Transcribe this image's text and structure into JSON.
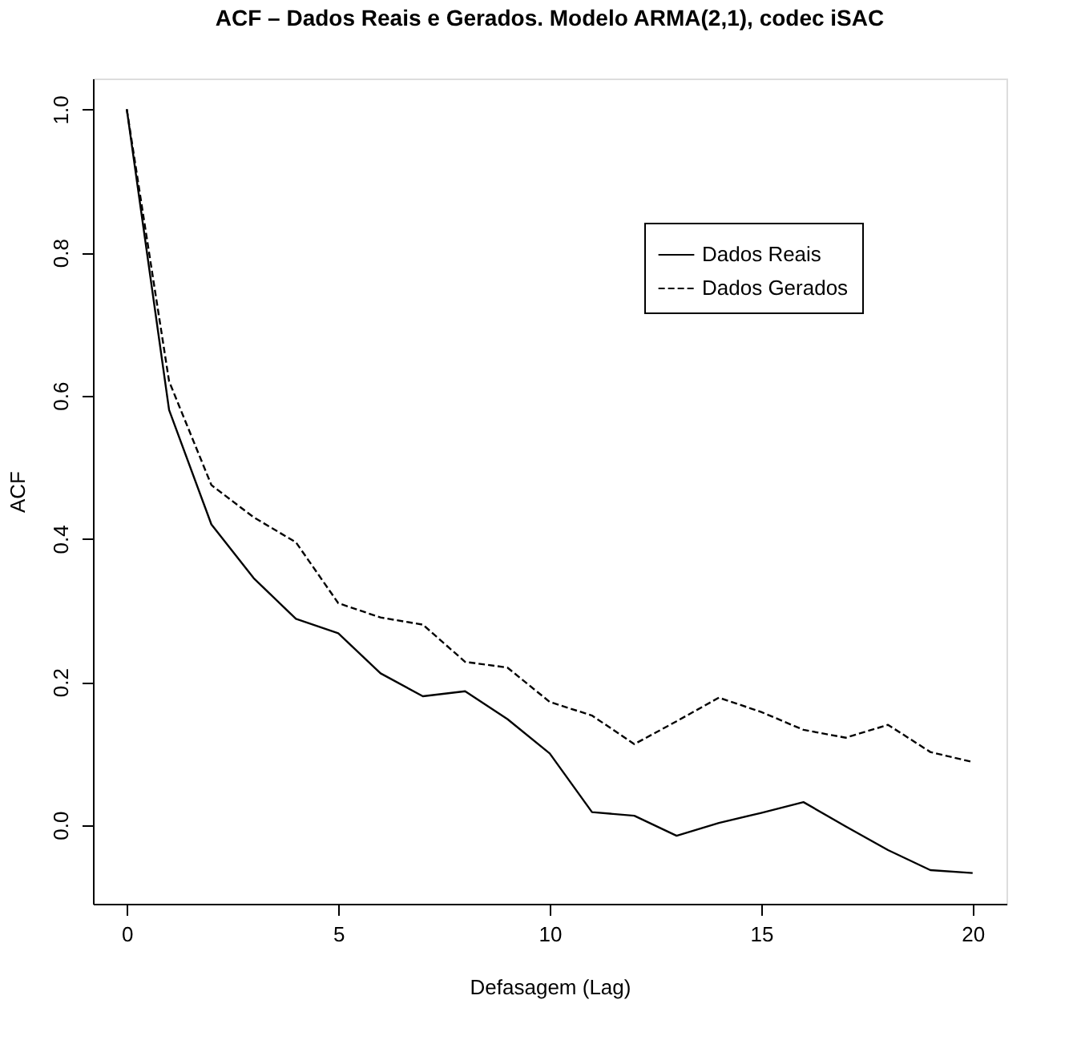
{
  "chart_data": {
    "type": "line",
    "title": "ACF – Dados Reais e Gerados. Modelo ARMA(2,1), codec iSAC",
    "xlabel": "Defasagem (Lag)",
    "ylabel": "ACF",
    "x": [
      0,
      1,
      2,
      3,
      4,
      5,
      6,
      7,
      8,
      9,
      10,
      11,
      12,
      13,
      14,
      15,
      16,
      17,
      18,
      19,
      20
    ],
    "series": [
      {
        "name": "Dados Reais",
        "color": "#000000",
        "line_style": "solid",
        "values": [
          1.0,
          0.58,
          0.42,
          0.345,
          0.288,
          0.268,
          0.212,
          0.18,
          0.187,
          0.148,
          0.1,
          0.018,
          0.013,
          -0.015,
          0.003,
          0.017,
          0.032,
          -0.002,
          -0.035,
          -0.063,
          -0.067
        ]
      },
      {
        "name": "Dados Gerados",
        "color": "#000000",
        "line_style": "dashed",
        "values": [
          1.0,
          0.62,
          0.475,
          0.43,
          0.395,
          0.31,
          0.29,
          0.28,
          0.228,
          0.22,
          0.172,
          0.153,
          0.113,
          0.145,
          0.178,
          0.158,
          0.133,
          0.122,
          0.14,
          0.102,
          0.088
        ]
      }
    ],
    "xlim": [
      -0.8,
      20.8
    ],
    "ylim": [
      -0.11,
      1.043
    ],
    "xticks": [
      0,
      5,
      10,
      15,
      20
    ],
    "yticks": [
      {
        "value": 0,
        "label": "0.0"
      },
      0.2,
      0.4,
      0.6,
      0.8,
      {
        "value": 1,
        "label": "1.0"
      }
    ],
    "legend": "top right",
    "grid": false,
    "marker": "none"
  }
}
